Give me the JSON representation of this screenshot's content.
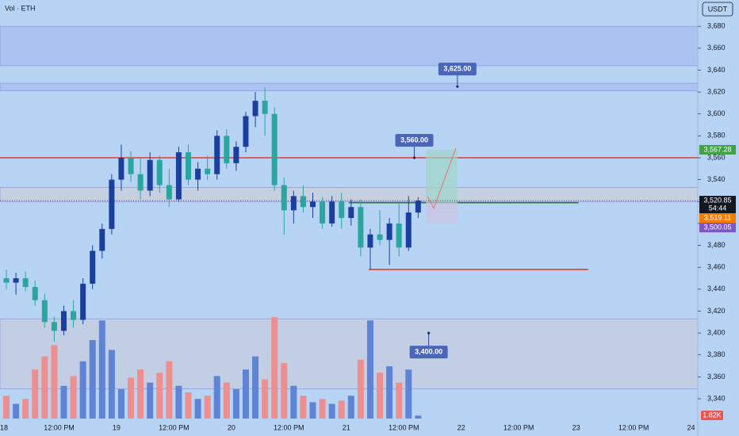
{
  "chart_data": {
    "type": "candlestick",
    "title": "Vol · ETH",
    "currency": "USDT",
    "x": [
      1,
      3,
      5,
      7,
      9,
      11,
      13,
      15,
      17,
      19,
      21,
      23,
      25,
      27,
      29,
      31,
      33,
      35,
      37,
      39,
      41,
      43,
      45,
      47,
      49,
      51,
      53,
      55,
      57,
      59,
      61,
      63,
      65,
      67,
      69,
      71,
      73,
      75,
      77,
      79,
      81,
      83,
      85,
      87
    ],
    "open": [
      3450,
      3446,
      3450,
      3442,
      3430,
      3410,
      3402,
      3420,
      3412,
      3445,
      3475,
      3495,
      3540,
      3560,
      3545,
      3530,
      3558,
      3535,
      3522,
      3565,
      3540,
      3550,
      3545,
      3580,
      3555,
      3570,
      3598,
      3612,
      3600,
      3535,
      3512,
      3525,
      3515,
      3520,
      3500,
      3520,
      3505,
      3515,
      3478,
      3490,
      3485,
      3500,
      3478,
      3510
    ],
    "high": [
      3458,
      3455,
      3456,
      3448,
      3436,
      3415,
      3425,
      3430,
      3450,
      3480,
      3500,
      3545,
      3572,
      3566,
      3560,
      3565,
      3562,
      3550,
      3570,
      3572,
      3556,
      3562,
      3585,
      3586,
      3575,
      3602,
      3620,
      3624,
      3606,
      3542,
      3530,
      3535,
      3528,
      3524,
      3525,
      3528,
      3522,
      3522,
      3495,
      3512,
      3505,
      3518,
      3525,
      3524
    ],
    "low": [
      3440,
      3435,
      3438,
      3425,
      3405,
      3392,
      3398,
      3405,
      3408,
      3440,
      3468,
      3490,
      3530,
      3538,
      3522,
      3525,
      3528,
      3515,
      3520,
      3535,
      3530,
      3540,
      3540,
      3550,
      3548,
      3565,
      3588,
      3580,
      3530,
      3490,
      3500,
      3510,
      3505,
      3495,
      3497,
      3495,
      3498,
      3470,
      3458,
      3480,
      3462,
      3470,
      3475,
      3505
    ],
    "close": [
      3446,
      3450,
      3442,
      3430,
      3410,
      3402,
      3420,
      3412,
      3445,
      3475,
      3495,
      3540,
      3560,
      3545,
      3530,
      3558,
      3535,
      3522,
      3565,
      3540,
      3550,
      3545,
      3580,
      3555,
      3570,
      3598,
      3612,
      3600,
      3535,
      3512,
      3525,
      3515,
      3520,
      3500,
      3520,
      3505,
      3515,
      3478,
      3490,
      3485,
      3500,
      3478,
      3510,
      3520.85
    ],
    "volume": [
      14,
      9,
      12,
      30,
      38,
      45,
      20,
      26,
      35,
      48,
      60,
      42,
      18,
      25,
      30,
      22,
      28,
      35,
      20,
      16,
      12,
      14,
      26,
      22,
      18,
      30,
      38,
      24,
      62,
      34,
      20,
      14,
      10,
      12,
      9,
      11,
      14,
      36,
      60,
      28,
      32,
      22,
      30,
      1.82
    ],
    "volume_label": "1.82K",
    "up_color": "#1b3f9f",
    "down_color": "#2aa5a0",
    "volume_up_color": "#5f84d6",
    "volume_down_color": "#ef8e8e",
    "xlim": [
      -0.33,
      145.4
    ],
    "ylim": [
      3306,
      3704
    ],
    "vlim": [
      0,
      240
    ],
    "xticks": [
      {
        "value": 0,
        "label": "18"
      },
      {
        "value": 12,
        "label": "12:00 PM"
      },
      {
        "value": 24,
        "label": "19"
      },
      {
        "value": 36,
        "label": "12:00 PM"
      },
      {
        "value": 48,
        "label": "20"
      },
      {
        "value": 60,
        "label": "12:00 PM"
      },
      {
        "value": 72,
        "label": "21"
      },
      {
        "value": 84,
        "label": "12:00 PM"
      },
      {
        "value": 96,
        "label": "22"
      },
      {
        "value": 108,
        "label": "12:00 PM"
      },
      {
        "value": 120,
        "label": "23"
      },
      {
        "value": 132,
        "label": "12:00 PM"
      },
      {
        "value": 144,
        "label": "24"
      }
    ],
    "yticks": [
      {
        "value": 3340,
        "label": "3,340"
      },
      {
        "value": 3360,
        "label": "3,360"
      },
      {
        "value": 3380,
        "label": "3,380"
      },
      {
        "value": 3400,
        "label": "3,400"
      },
      {
        "value": 3420,
        "label": "3,420"
      },
      {
        "value": 3440,
        "label": "3,440"
      },
      {
        "value": 3460,
        "label": "3,460"
      },
      {
        "value": 3480,
        "label": "3,480"
      },
      {
        "value": 3500,
        "label": "3,500"
      },
      {
        "value": 3520,
        "label": "3,520"
      },
      {
        "value": 3540,
        "label": "3,540"
      },
      {
        "value": 3560,
        "label": "3,560"
      },
      {
        "value": 3580,
        "label": "3,580"
      },
      {
        "value": 3600,
        "label": "3,600"
      },
      {
        "value": 3620,
        "label": "3,620"
      },
      {
        "value": 3640,
        "label": "3,640"
      },
      {
        "value": 3660,
        "label": "3,660"
      },
      {
        "value": 3680,
        "label": "3,680"
      }
    ],
    "zones": [
      {
        "from": 3644,
        "to": 3680,
        "color": "#a9bff0"
      },
      {
        "from": 3621,
        "to": 3628,
        "color": "#a9bff0"
      },
      {
        "from": 3520,
        "to": 3533,
        "color": "#c7cfdc"
      },
      {
        "from": 3349,
        "to": 3413,
        "color": "#c3cde0"
      }
    ],
    "levels": [
      {
        "value": 3560,
        "color": "#e53935",
        "x": [
          -0.33,
          145.4
        ]
      },
      {
        "value": 3458,
        "color": "#e53935",
        "x": [
          76.7,
          122.5
        ]
      },
      {
        "value": 3519,
        "color": "#2e7d32",
        "x": [
          72.5,
          120.5
        ]
      }
    ],
    "position": {
      "x": [
        88.6,
        95.2
      ],
      "entry": 3519,
      "target": 3567.28,
      "stop": 3500.05
    },
    "annotations": [
      {
        "label": "3,625.00",
        "value": 3625,
        "x": 95.2,
        "placement": "above"
      },
      {
        "label": "3,560.00",
        "value": 3560,
        "x": 86.2,
        "placement": "above"
      },
      {
        "label": "3,400.00",
        "value": 3400,
        "x": 89.2,
        "placement": "below"
      }
    ],
    "price_labels": [
      {
        "value": 3567.28,
        "label": "3,567.28",
        "color": "#43a047"
      },
      {
        "value": 3520.85,
        "label": "3,520.85",
        "color": "#131722",
        "countdown": "54:44"
      },
      {
        "value": 3519.11,
        "label": "3,519.11",
        "color": "#f57c00"
      },
      {
        "value": 3500.05,
        "label": "3,500.05",
        "color": "#7e57c2"
      }
    ]
  }
}
